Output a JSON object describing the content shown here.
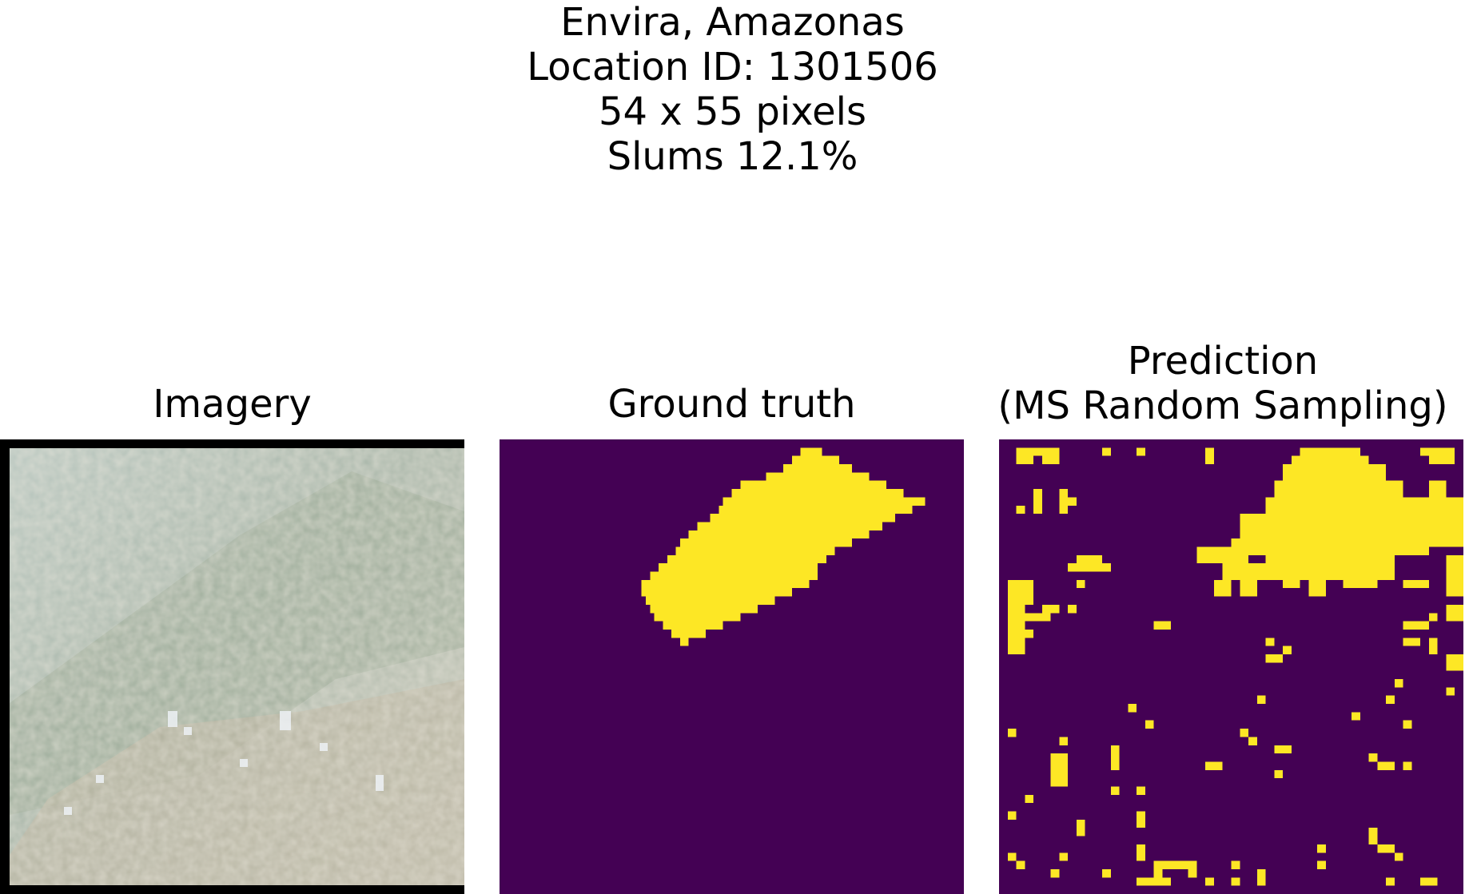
{
  "suptitle": {
    "line1": "Envira, Amazonas",
    "line2": "Location ID: 1301506",
    "line3": "54 x 55 pixels",
    "line4": "Slums 12.1%"
  },
  "panels": [
    {
      "title": "Imagery"
    },
    {
      "title": "Ground truth"
    },
    {
      "title_line1": "Prediction",
      "title_line2": "(MS Random Sampling)"
    }
  ],
  "colors": {
    "background_class": "#440154",
    "slum_class": "#fde725",
    "imagery_border": "#000000"
  },
  "grid": {
    "cols": 54,
    "rows": 55
  }
}
